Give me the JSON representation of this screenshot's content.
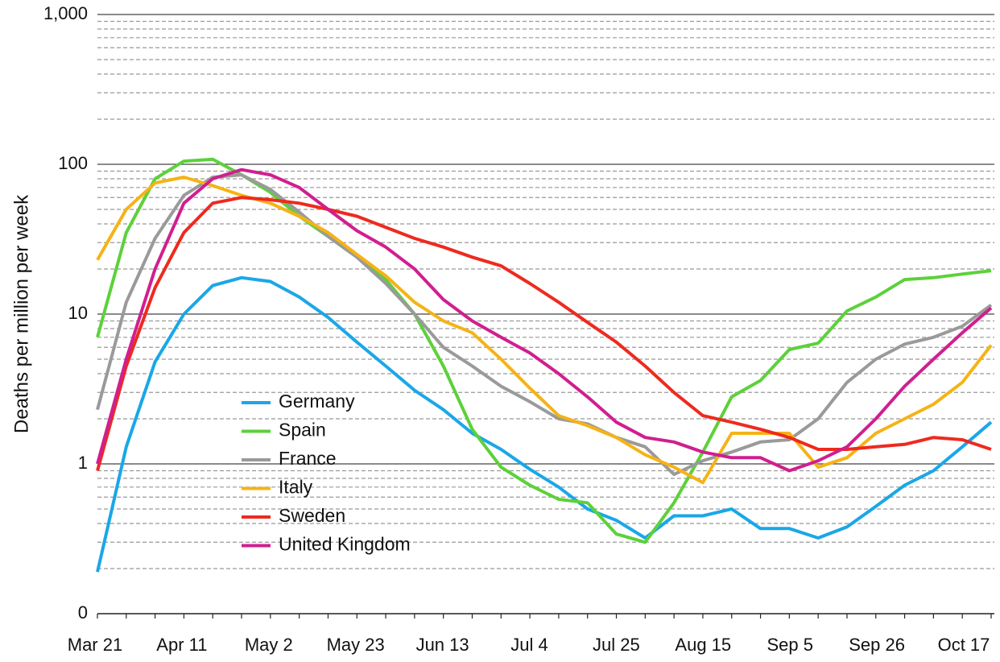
{
  "chart_data": {
    "type": "line",
    "y_label": "Deaths per million per week",
    "log_scale": true,
    "grid": true,
    "minor_grid": true,
    "categories": [
      "Mar 21",
      null,
      null,
      "Apr 11",
      null,
      null,
      "May 2",
      null,
      null,
      "May 23",
      null,
      null,
      "Jun 13",
      null,
      null,
      "Jul 4",
      null,
      null,
      "Jul 25",
      null,
      null,
      "Aug 15",
      null,
      null,
      "Sep 5",
      null,
      null,
      "Sep 26",
      null,
      null,
      "Oct 17",
      null
    ],
    "ylim": [
      0.1,
      1000
    ],
    "yticks": [
      {
        "value": 0.1,
        "label": "0"
      },
      1,
      10,
      100,
      {
        "value": 1000,
        "label": "1,000"
      }
    ],
    "series": [
      {
        "name": "Germany",
        "color": "#1aa7e8",
        "values": [
          0.19,
          1.3,
          4.8,
          10,
          15.5,
          17.5,
          16.5,
          13,
          9.5,
          6.5,
          4.5,
          3.1,
          2.3,
          1.6,
          1.25,
          0.92,
          0.7,
          0.5,
          0.42,
          0.32,
          0.45,
          0.45,
          0.5,
          0.37,
          0.37,
          0.32,
          0.38,
          0.52,
          0.72,
          0.9,
          1.3,
          1.9
        ]
      },
      {
        "name": "Spain",
        "color": "#5cd13a",
        "values": [
          7,
          35,
          80,
          105,
          108,
          85,
          65,
          45,
          33,
          24,
          17,
          10,
          4.5,
          1.7,
          0.95,
          0.72,
          0.58,
          0.55,
          0.34,
          0.3,
          0.55,
          1.2,
          2.8,
          3.6,
          5.8,
          6.4,
          10.5,
          13,
          17,
          17.5,
          18.5,
          19.5
        ]
      },
      {
        "name": "France",
        "color": "#9a9a9a",
        "values": [
          2.3,
          12,
          32,
          62,
          82,
          85,
          68,
          48,
          33,
          24,
          16,
          10,
          6,
          4.5,
          3.3,
          2.6,
          2.0,
          1.85,
          1.5,
          1.3,
          0.85,
          1.05,
          1.2,
          1.4,
          1.45,
          2.0,
          3.5,
          5,
          6.3,
          7,
          8.3,
          11.5
        ]
      },
      {
        "name": "Italy",
        "color": "#f5b316",
        "values": [
          23,
          50,
          75,
          82,
          72,
          62,
          55,
          45,
          35,
          25,
          18,
          12,
          9,
          7.5,
          5,
          3.2,
          2.1,
          1.8,
          1.5,
          1.15,
          0.95,
          0.75,
          1.6,
          1.6,
          1.6,
          0.95,
          1.1,
          1.6,
          2.0,
          2.5,
          3.5,
          6.2
        ]
      },
      {
        "name": "Sweden",
        "color": "#ee2a1f",
        "values": [
          0.9,
          4.5,
          15,
          35,
          55,
          60,
          58,
          55,
          50,
          45,
          38,
          32,
          28,
          24,
          21,
          16,
          12,
          8.8,
          6.5,
          4.5,
          3.0,
          2.1,
          1.9,
          1.7,
          1.5,
          1.25,
          1.25,
          1.3,
          1.35,
          1.5,
          1.45,
          1.25
        ]
      },
      {
        "name": "United Kingdom",
        "color": "#d01f8f",
        "values": [
          1.0,
          5,
          20,
          55,
          80,
          92,
          85,
          70,
          50,
          36,
          28,
          20,
          12.5,
          9,
          7,
          5.5,
          4,
          2.8,
          1.9,
          1.5,
          1.4,
          1.2,
          1.1,
          1.1,
          0.9,
          1.05,
          1.3,
          2.0,
          3.3,
          5,
          7.5,
          11
        ]
      }
    ]
  }
}
